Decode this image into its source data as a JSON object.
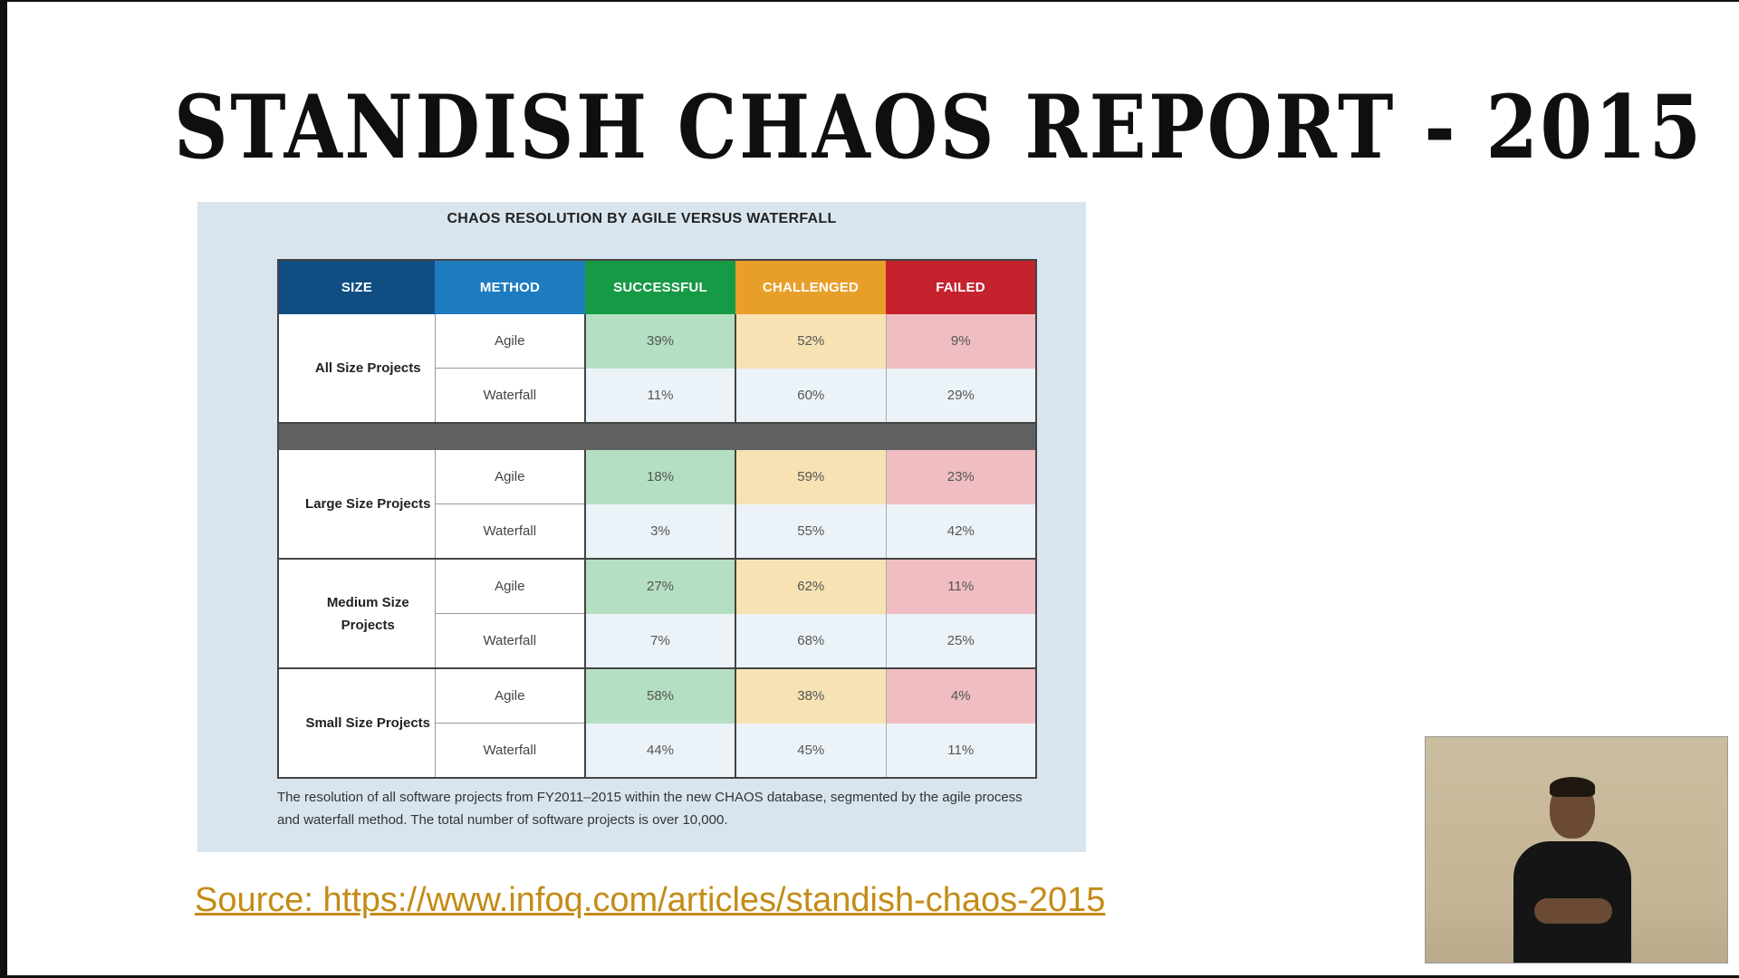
{
  "slide": {
    "title": "STANDISH CHAOS REPORT - 2015",
    "source_link": "Source: https://www.infoq.com/articles/standish-chaos-2015"
  },
  "figure": {
    "title": "CHAOS RESOLUTION BY AGILE VERSUS WATERFALL",
    "columns": [
      "SIZE",
      "METHOD",
      "SUCCESSFUL",
      "CHALLENGED",
      "FAILED"
    ],
    "column_colors": [
      "#0f4d82",
      "#1f7bc0",
      "#179a45",
      "#e89f2a",
      "#c4232e"
    ],
    "groups": [
      {
        "size": "All Size Projects",
        "rows": [
          {
            "method": "Agile",
            "successful": "39%",
            "challenged": "52%",
            "failed": "9%"
          },
          {
            "method": "Waterfall",
            "successful": "11%",
            "challenged": "60%",
            "failed": "29%"
          }
        ]
      },
      {
        "size": "Large Size Projects",
        "rows": [
          {
            "method": "Agile",
            "successful": "18%",
            "challenged": "59%",
            "failed": "23%"
          },
          {
            "method": "Waterfall",
            "successful": "3%",
            "challenged": "55%",
            "failed": "42%"
          }
        ]
      },
      {
        "size": "Medium Size Projects",
        "rows": [
          {
            "method": "Agile",
            "successful": "27%",
            "challenged": "62%",
            "failed": "11%"
          },
          {
            "method": "Waterfall",
            "successful": "7%",
            "challenged": "68%",
            "failed": "25%"
          }
        ]
      },
      {
        "size": "Small Size Projects",
        "rows": [
          {
            "method": "Agile",
            "successful": "58%",
            "challenged": "38%",
            "failed": "4%"
          },
          {
            "method": "Waterfall",
            "successful": "44%",
            "challenged": "45%",
            "failed": "11%"
          }
        ]
      }
    ],
    "caption": "The resolution of all software projects from FY2011–2015 within the new CHAOS database, segmented by the agile process and waterfall method. The total number of software projects is over 10,000."
  },
  "video": {
    "icon": "presenter-video-icon"
  }
}
